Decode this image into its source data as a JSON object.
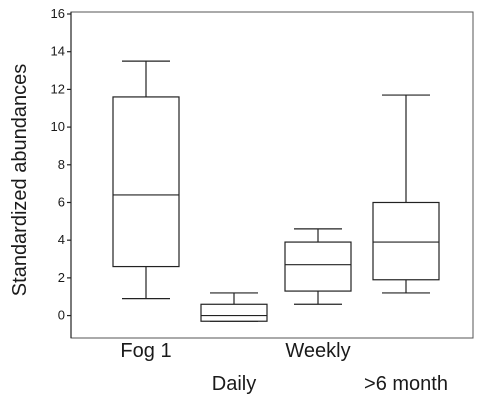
{
  "chart_data": {
    "type": "box",
    "ylabel": "Standardized abundances",
    "xlabel": "",
    "ylim": [
      -0.5,
      16
    ],
    "yticks": [
      0,
      2,
      4,
      6,
      8,
      10,
      12,
      14,
      16
    ],
    "categories": [
      "Fog 1",
      "Daily",
      "Weekly",
      ">6 month"
    ],
    "boxes": [
      {
        "category": "Fog 1",
        "whisker_low": 0.9,
        "q1": 2.6,
        "median": 6.4,
        "q3": 11.6,
        "whisker_high": 13.5
      },
      {
        "category": "Daily",
        "whisker_low": -0.3,
        "q1": -0.3,
        "median": 0.0,
        "q3": 0.6,
        "whisker_high": 1.2
      },
      {
        "category": "Weekly",
        "whisker_low": 0.6,
        "q1": 1.3,
        "median": 2.7,
        "q3": 3.9,
        "whisker_high": 4.6
      },
      {
        "category": ">6 month",
        "whisker_low": 1.2,
        "q1": 1.9,
        "median": 3.9,
        "q3": 6.0,
        "whisker_high": 11.7
      }
    ],
    "colors": {
      "stroke": "#222222",
      "fill": "#ffffff",
      "frame": "#555555"
    }
  }
}
